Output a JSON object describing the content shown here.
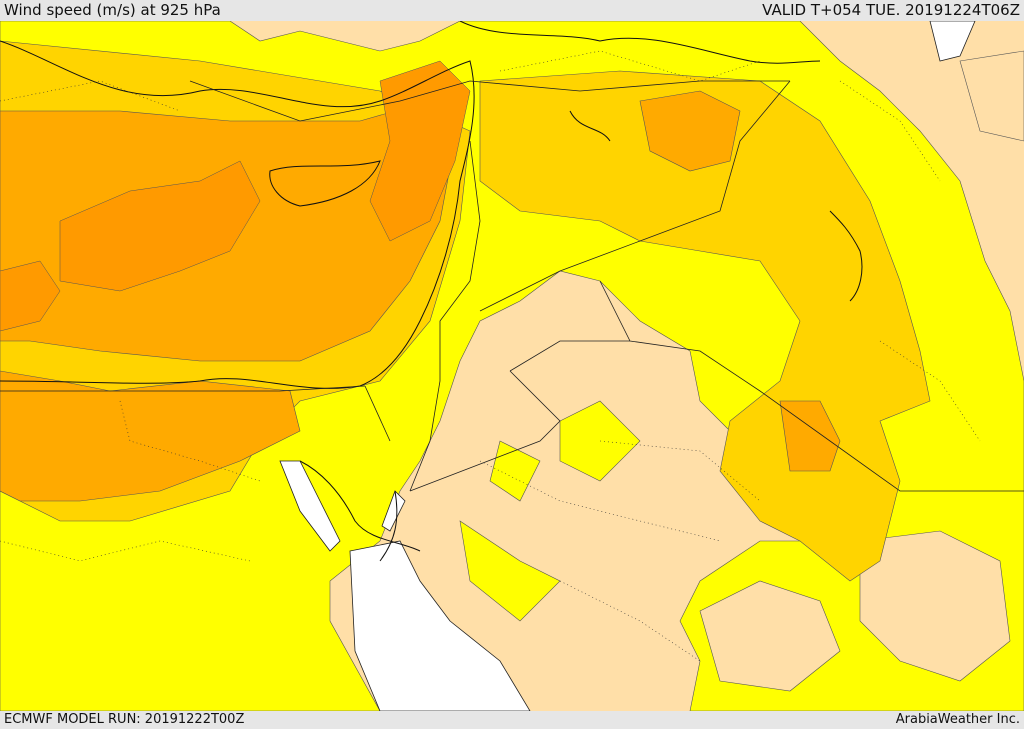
{
  "header": {
    "title": "Wind speed (m/s) at 925 hPa",
    "valid": "VALID T+054 TUE. 20191224T06Z"
  },
  "footer": {
    "model_run": "ECMWF MODEL RUN: 20191222T00Z",
    "credit": "ArabiaWeather Inc."
  },
  "colors": {
    "background": "#e6e6e6",
    "low_speed": "#ffdfa8",
    "moderate_speed": "#ffff00",
    "fresh_speed": "#ffd400",
    "strong_speed": "#ffaa00",
    "very_strong_speed": "#ff9a00",
    "water_masked": "#ffffff"
  }
}
